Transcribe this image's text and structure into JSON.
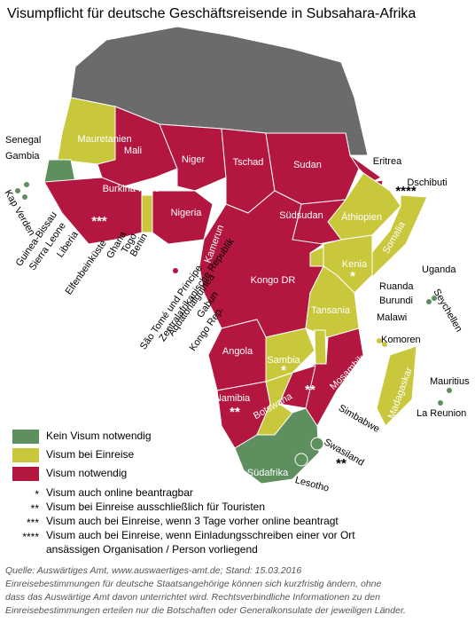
{
  "title": "Visumpflicht für deutsche Geschäftsreisende in Subsahara-Afrika",
  "other_color": "#6b6b6b",
  "countries": [
    {
      "label": "Mauretanien",
      "color": "#c9c83c"
    },
    {
      "label": "Mali",
      "color": "#b3163e"
    },
    {
      "label": "Niger",
      "color": "#b3163e"
    },
    {
      "label": "Tschad",
      "color": "#b3163e"
    },
    {
      "label": "Sudan",
      "color": "#b3163e"
    },
    {
      "label": "Eritrea",
      "color": "#b3163e"
    },
    {
      "label": "Dschibuti",
      "color": "#b3163e"
    },
    {
      "label": "Senegal",
      "color": "#5e8f5e"
    },
    {
      "label": "Gambia",
      "color": "#5e8f5e"
    },
    {
      "label": "Kap Verden",
      "color": "#5e8f5e"
    },
    {
      "label": "Guinea-Bissau",
      "color": "#b3163e"
    },
    {
      "label": "Sierra Leone",
      "color": "#b3163e"
    },
    {
      "label": "Liberia",
      "color": "#b3163e"
    },
    {
      "label": "Elfenbeinküste",
      "color": "#b3163e"
    },
    {
      "label": "Ghana",
      "color": "#b3163e"
    },
    {
      "label": "Togo",
      "color": "#c9c83c"
    },
    {
      "label": "Benin",
      "color": "#c9c83c"
    },
    {
      "label": "Burkina Faso",
      "color": "#b3163e"
    },
    {
      "label": "Nigeria",
      "color": "#b3163e"
    },
    {
      "label": "Kamerun",
      "color": "#b3163e"
    },
    {
      "label": "Zentralafrikanische Republik",
      "color": "#b3163e"
    },
    {
      "label": "São Tomé und Principe",
      "color": "#b3163e"
    },
    {
      "label": "Äquatorialguinea",
      "color": "#b3163e"
    },
    {
      "label": "Gabun",
      "color": "#b3163e"
    },
    {
      "label": "Kongo Rep.",
      "color": "#b3163e"
    },
    {
      "label": "Kongo DR",
      "color": "#b3163e"
    },
    {
      "label": "Südsudan",
      "color": "#b3163e"
    },
    {
      "label": "Äthiopien",
      "color": "#c9c83c"
    },
    {
      "label": "Somalia",
      "color": "#c9c83c"
    },
    {
      "label": "Kenia",
      "color": "#c9c83c"
    },
    {
      "label": "Uganda",
      "color": "#c9c83c"
    },
    {
      "label": "Ruanda",
      "color": "#c9c83c"
    },
    {
      "label": "Burundi",
      "color": "#b3163e"
    },
    {
      "label": "Tansania",
      "color": "#c9c83c"
    },
    {
      "label": "Seychellen",
      "color": "#5e8f5e"
    },
    {
      "label": "Malawi",
      "color": "#c9c83c"
    },
    {
      "label": "Komoren",
      "color": "#c9c83c"
    },
    {
      "label": "Angola",
      "color": "#b3163e"
    },
    {
      "label": "Sambia",
      "color": "#c9c83c"
    },
    {
      "label": "Mosambik",
      "color": "#b3163e"
    },
    {
      "label": "Madagaskar",
      "color": "#c9c83c"
    },
    {
      "label": "Mauritius",
      "color": "#5e8f5e"
    },
    {
      "label": "La Reunion",
      "color": "#5e8f5e"
    },
    {
      "label": "Namibia",
      "color": "#b3163e"
    },
    {
      "label": "Simbabwe",
      "color": "#b3163e"
    },
    {
      "label": "Botswana",
      "color": "#c9c83c"
    },
    {
      "label": "Swasiland",
      "color": "#5e8f5e"
    },
    {
      "label": "Südafrika",
      "color": "#5e8f5e"
    },
    {
      "label": "Lesotho",
      "color": "#5e8f5e"
    }
  ],
  "annotations": [
    "****",
    "***",
    "*",
    "*",
    "**",
    "**",
    "**"
  ],
  "legend": [
    {
      "label": "Kein Visum notwendig",
      "color": "#5e8f5e"
    },
    {
      "label": "Visum bei Einreise",
      "color": "#c9c83c"
    },
    {
      "label": "Visum notwendig",
      "color": "#b3163e"
    }
  ],
  "footnotes": [
    {
      "symbol": "*",
      "lines": [
        "Visum auch online beantragbar"
      ]
    },
    {
      "symbol": "**",
      "lines": [
        "Visum bei Einreise ausschließlich für Touristen"
      ]
    },
    {
      "symbol": "***",
      "lines": [
        "Visum auch bei Einreise, wenn 3 Tage vorher online beantragt"
      ]
    },
    {
      "symbol": "****",
      "lines": [
        "Visum auch bei Einreise, wenn Einladungsschreiben einer vor Ort",
        "ansässigen Organisation / Person vorliegend"
      ]
    }
  ],
  "source": [
    "Quelle: Auswärtiges Amt, www.auswaertiges-amt.de; Stand: 15.03.2016",
    "Einreisebestimmungen für deutsche Staatsangehörige können sich kurzfristig ändern, ohne",
    "dass das Auswärtige Amt davon unterrichtet wird. Rechtsverbindliche Informationen zu den",
    "Einreisebestimmungen erteilen nur die Botschaften oder Generalkonsulate der jeweiligen Länder."
  ]
}
